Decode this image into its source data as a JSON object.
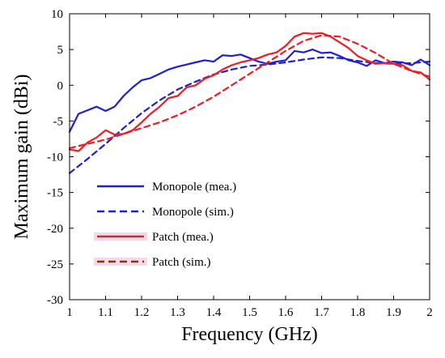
{
  "chart_data": {
    "type": "line",
    "xlabel": "Frequency (GHz)",
    "ylabel": "Maximum gain (dBi)",
    "xlim": [
      1,
      2
    ],
    "ylim": [
      -30,
      10
    ],
    "xticks": [
      "1",
      "1.1",
      "1.2",
      "1.3",
      "1.4",
      "1.5",
      "1.6",
      "1.7",
      "1.8",
      "1.9",
      "2"
    ],
    "yticks": [
      "10",
      "5",
      "0",
      "-5",
      "-10",
      "-15",
      "-20",
      "-25",
      "-30"
    ],
    "grid": false,
    "legend_position": "lower-left",
    "series": [
      {
        "name": "Monopole (mea.)",
        "color": "#1f1fd6",
        "style": "solid",
        "x": [
          1.0,
          1.025,
          1.05,
          1.075,
          1.1,
          1.125,
          1.15,
          1.175,
          1.2,
          1.225,
          1.25,
          1.275,
          1.3,
          1.325,
          1.35,
          1.375,
          1.4,
          1.425,
          1.45,
          1.475,
          1.5,
          1.525,
          1.55,
          1.575,
          1.6,
          1.625,
          1.65,
          1.675,
          1.7,
          1.725,
          1.75,
          1.775,
          1.8,
          1.825,
          1.85,
          1.875,
          1.9,
          1.925,
          1.95,
          1.975,
          2.0
        ],
        "y": [
          -6.5,
          -4.0,
          -3.5,
          -3.0,
          -3.6,
          -3.0,
          -1.5,
          -0.3,
          0.7,
          1.0,
          1.6,
          2.2,
          2.6,
          2.9,
          3.2,
          3.5,
          3.3,
          4.2,
          4.1,
          4.3,
          3.8,
          3.3,
          3.0,
          3.3,
          3.5,
          4.8,
          4.6,
          5.0,
          4.5,
          4.6,
          4.1,
          3.5,
          3.2,
          2.7,
          3.5,
          3.1,
          3.3,
          3.2,
          2.8,
          3.6,
          2.8
        ]
      },
      {
        "name": "Monopole (sim.)",
        "color": "#1f1fd6",
        "style": "dashed",
        "x": [
          1.0,
          1.05,
          1.1,
          1.15,
          1.2,
          1.25,
          1.3,
          1.35,
          1.4,
          1.45,
          1.5,
          1.55,
          1.6,
          1.65,
          1.7,
          1.75,
          1.8,
          1.85,
          1.9,
          1.95,
          2.0
        ],
        "y": [
          -12.3,
          -10.3,
          -8.2,
          -6.0,
          -3.9,
          -2.1,
          -0.6,
          0.5,
          1.5,
          2.2,
          2.7,
          2.9,
          3.2,
          3.6,
          3.9,
          3.8,
          3.4,
          3.1,
          3.0,
          3.1,
          3.3
        ]
      },
      {
        "name": "Patch (mea.)",
        "color": "#ee1c24",
        "style": "solid",
        "x": [
          1.0,
          1.025,
          1.05,
          1.075,
          1.1,
          1.125,
          1.15,
          1.175,
          1.2,
          1.225,
          1.25,
          1.275,
          1.3,
          1.325,
          1.35,
          1.375,
          1.4,
          1.425,
          1.45,
          1.475,
          1.5,
          1.525,
          1.55,
          1.575,
          1.6,
          1.625,
          1.65,
          1.675,
          1.7,
          1.725,
          1.75,
          1.775,
          1.8,
          1.825,
          1.85,
          1.875,
          1.9,
          1.925,
          1.95,
          1.975,
          2.0
        ],
        "y": [
          -9.0,
          -9.2,
          -8.0,
          -7.3,
          -6.3,
          -6.9,
          -6.8,
          -6.3,
          -5.2,
          -4.0,
          -3.0,
          -1.8,
          -1.5,
          -0.3,
          0.0,
          0.9,
          1.4,
          2.2,
          2.8,
          3.2,
          3.5,
          3.8,
          4.3,
          4.6,
          5.5,
          6.8,
          7.3,
          7.2,
          7.3,
          6.8,
          6.0,
          5.2,
          4.1,
          3.5,
          3.0,
          3.1,
          3.0,
          2.8,
          2.0,
          1.8,
          0.8
        ]
      },
      {
        "name": "Patch (sim.)",
        "color": "#ee1c24",
        "style": "dashed",
        "x": [
          1.0,
          1.05,
          1.1,
          1.15,
          1.2,
          1.25,
          1.3,
          1.35,
          1.4,
          1.45,
          1.5,
          1.55,
          1.6,
          1.65,
          1.7,
          1.75,
          1.8,
          1.85,
          1.9,
          1.95,
          2.0
        ],
        "y": [
          -8.8,
          -8.2,
          -7.6,
          -6.8,
          -6.0,
          -5.2,
          -4.2,
          -3.0,
          -1.6,
          0.0,
          1.6,
          3.2,
          4.8,
          6.2,
          7.0,
          6.8,
          5.8,
          4.5,
          3.0,
          2.0,
          1.2
        ]
      }
    ]
  },
  "legend_items": [
    {
      "label": "Monopole (mea.)",
      "color": "#1f1fd6",
      "style": "solid"
    },
    {
      "label": "Monopole (sim.)",
      "color": "#1f1fd6",
      "style": "dashed"
    },
    {
      "label": "Patch (mea.)",
      "color": "#b03a2e",
      "style": "solid"
    },
    {
      "label": "Patch (sim.)",
      "color": "#7a3b12",
      "style": "dashed"
    }
  ]
}
